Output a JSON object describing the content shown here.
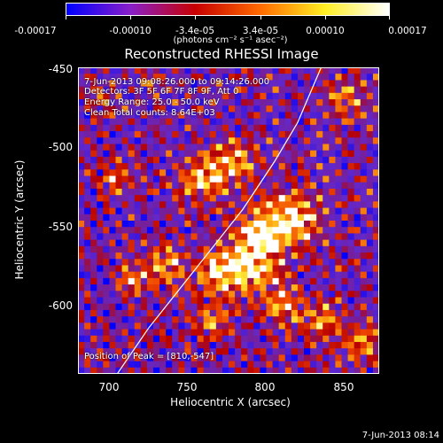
{
  "title": "Reconstructed RHESSI Image",
  "colorbar": {
    "ticks": [
      "-0.00017",
      "-0.00010",
      "-3.4e-05",
      "3.4e-05",
      "0.00010",
      "0.00017"
    ],
    "units": "(photons cm⁻² s⁻¹ asec⁻²)",
    "colors": [
      "#0000ff",
      "#8a1fc8",
      "#c80000",
      "#ff6a00",
      "#ffee22",
      "#ffffff"
    ]
  },
  "annotations": {
    "time_range": "7-Jun-2013 09:08:26.000 to 09:14:26.000",
    "detectors": "Detectors: 3F 5F 6F 7F 8F 9F, Att 0",
    "energy": "Energy Range: 25.0 - 50.0 keV",
    "clean": "Clean     Total counts: 8.64E+03",
    "peak": "Position of Peak = [810,-547]"
  },
  "axes": {
    "xlabel": "Heliocentric X (arcsec)",
    "ylabel": "Heliocentric Y (arcsec)",
    "xticks": [
      "700",
      "750",
      "800",
      "850"
    ],
    "yticks": [
      "-450",
      "-500",
      "-550",
      "-600"
    ]
  },
  "footer": "7-Jun-2013 08:14",
  "chart_data": {
    "type": "heatmap",
    "title": "Reconstructed RHESSI Image",
    "xlabel": "Heliocentric X (arcsec)",
    "ylabel": "Heliocentric Y (arcsec)",
    "xlim": [
      675,
      867
    ],
    "ylim": [
      -644,
      -450
    ],
    "color_range": [
      -0.00017,
      0.00017
    ],
    "peak": [
      810,
      -547
    ],
    "sources": [
      {
        "x": 810,
        "y": -547,
        "sigma": 12,
        "amp": 1.0
      },
      {
        "x": 790,
        "y": -555,
        "sigma": 10,
        "amp": 0.9
      },
      {
        "x": 785,
        "y": -575,
        "sigma": 12,
        "amp": 0.85
      },
      {
        "x": 765,
        "y": -580,
        "sigma": 10,
        "amp": 0.8
      },
      {
        "x": 755,
        "y": -520,
        "sigma": 10,
        "amp": 0.85
      },
      {
        "x": 775,
        "y": -510,
        "sigma": 9,
        "amp": 0.75
      },
      {
        "x": 730,
        "y": -575,
        "sigma": 9,
        "amp": 0.65
      },
      {
        "x": 710,
        "y": -585,
        "sigma": 7,
        "amp": 0.6
      },
      {
        "x": 700,
        "y": -520,
        "sigma": 7,
        "amp": 0.55
      },
      {
        "x": 845,
        "y": -470,
        "sigma": 9,
        "amp": 0.6
      },
      {
        "x": 830,
        "y": -610,
        "sigma": 9,
        "amp": 0.6
      },
      {
        "x": 855,
        "y": -625,
        "sigma": 8,
        "amp": 0.65
      },
      {
        "x": 760,
        "y": -610,
        "sigma": 8,
        "amp": 0.55
      },
      {
        "x": 805,
        "y": -600,
        "sigma": 9,
        "amp": 0.65
      },
      {
        "x": 690,
        "y": -470,
        "sigma": 6,
        "amp": 0.45
      },
      {
        "x": 720,
        "y": -460,
        "sigma": 5,
        "amp": 0.35
      }
    ],
    "limb_arc": [
      [
        700,
        -644
      ],
      [
        720,
        -615
      ],
      [
        740,
        -590
      ],
      [
        760,
        -565
      ],
      [
        780,
        -540
      ],
      [
        800,
        -510
      ],
      [
        815,
        -485
      ],
      [
        830,
        -450
      ]
    ]
  }
}
